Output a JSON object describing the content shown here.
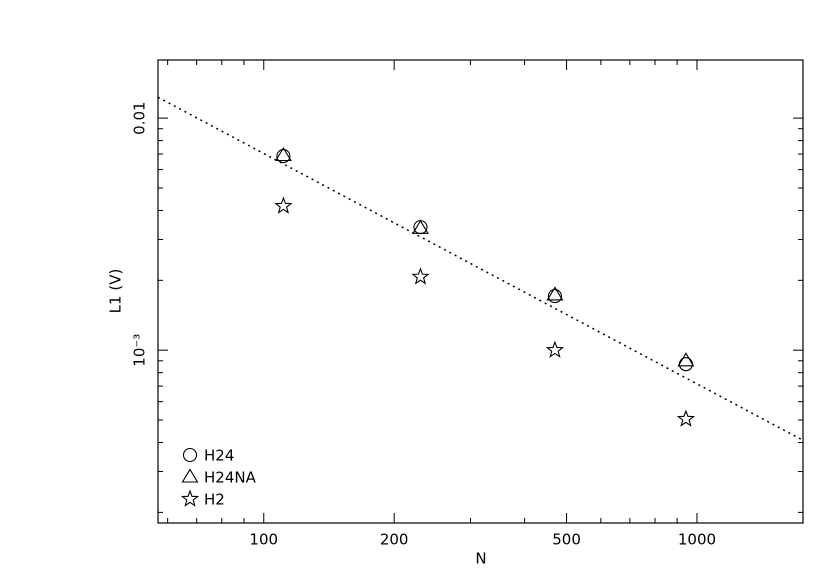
{
  "chart_data": {
    "type": "scatter",
    "xlabel": "N",
    "ylabel": "L1 (V)",
    "log_x": true,
    "log_y": true,
    "x": [
      111,
      230,
      470,
      943
    ],
    "series": [
      {
        "name": "H24",
        "marker": "circle",
        "color": "#000000",
        "values": [
          0.00686,
          0.00339,
          0.00171,
          0.00087
        ]
      },
      {
        "name": "H24NA",
        "marker": "triangle",
        "color": "#000000",
        "values": [
          0.0069,
          0.00335,
          0.00173,
          0.0009
        ]
      },
      {
        "name": "H2",
        "marker": "star",
        "color": "#000000",
        "values": [
          0.00418,
          0.00207,
          0.001,
          0.000505
        ]
      }
    ],
    "fit": {
      "x": [
        57,
        1757
      ],
      "values": [
        0.0123,
        0.000409
      ],
      "style": "dotted",
      "color": "#000000"
    },
    "xlim": [
      57,
      1757
    ],
    "ylim": [
      0.00018,
      0.0178
    ],
    "xticks": [
      100,
      200,
      500,
      1000
    ],
    "xminorticks": [
      60,
      70,
      80,
      90,
      300,
      400,
      600,
      700,
      800,
      900
    ],
    "yticks": [
      0.01,
      {
        "value": 0.001,
        "label": "10⁻³"
      }
    ],
    "yminorticks": [
      0.0002,
      0.0003,
      0.0004,
      0.0005,
      0.0006,
      0.0007,
      0.0008,
      0.0009,
      0.002,
      0.003,
      0.004,
      0.005,
      0.006,
      0.007,
      0.008,
      0.009
    ],
    "legend": "bottom-left"
  }
}
